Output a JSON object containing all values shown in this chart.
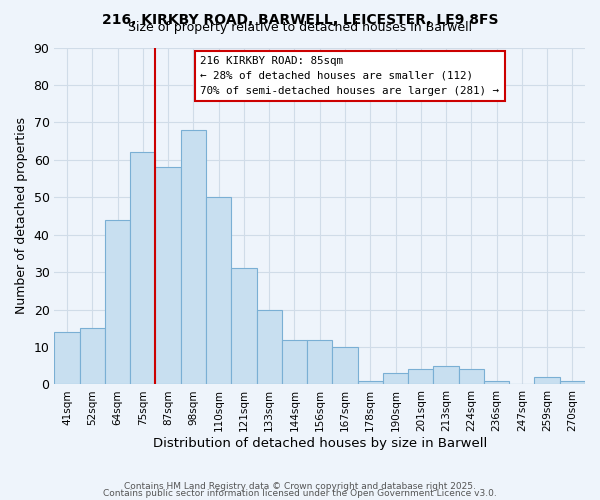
{
  "title": "216, KIRKBY ROAD, BARWELL, LEICESTER, LE9 8FS",
  "subtitle": "Size of property relative to detached houses in Barwell",
  "xlabel": "Distribution of detached houses by size in Barwell",
  "ylabel": "Number of detached properties",
  "bar_labels": [
    "41sqm",
    "52sqm",
    "64sqm",
    "75sqm",
    "87sqm",
    "98sqm",
    "110sqm",
    "121sqm",
    "133sqm",
    "144sqm",
    "156sqm",
    "167sqm",
    "178sqm",
    "190sqm",
    "201sqm",
    "213sqm",
    "224sqm",
    "236sqm",
    "247sqm",
    "259sqm",
    "270sqm"
  ],
  "bar_values": [
    14,
    15,
    44,
    62,
    58,
    68,
    50,
    31,
    20,
    12,
    12,
    10,
    1,
    3,
    4,
    5,
    4,
    1,
    0,
    2,
    1
  ],
  "bar_color": "#c8dff0",
  "bar_edge_color": "#7aafd4",
  "background_color": "#eef4fb",
  "grid_color": "#d0dce8",
  "vline_x_index": 4,
  "vline_color": "#cc0000",
  "ylim": [
    0,
    90
  ],
  "yticks": [
    0,
    10,
    20,
    30,
    40,
    50,
    60,
    70,
    80,
    90
  ],
  "annotation_title": "216 KIRKBY ROAD: 85sqm",
  "annotation_line2": "← 28% of detached houses are smaller (112)",
  "annotation_line3": "70% of semi-detached houses are larger (281) →",
  "footer_line1": "Contains HM Land Registry data © Crown copyright and database right 2025.",
  "footer_line2": "Contains public sector information licensed under the Open Government Licence v3.0."
}
